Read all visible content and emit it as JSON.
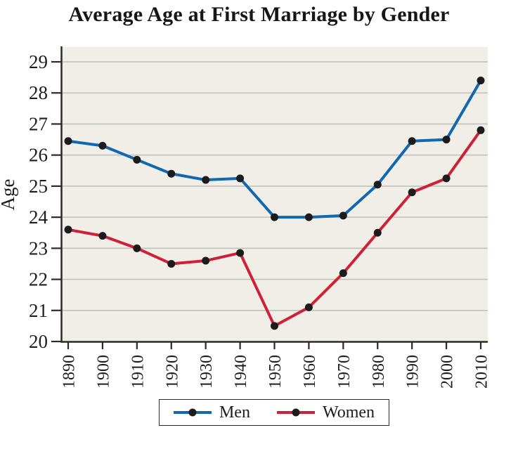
{
  "chart_data": {
    "type": "line",
    "title": "Average Age at First Marriage by Gender",
    "xlabel": "",
    "ylabel": "Age",
    "x": [
      1890,
      1900,
      1910,
      1920,
      1930,
      1940,
      1950,
      1960,
      1970,
      1980,
      1990,
      2000,
      2010
    ],
    "x_tick_labels": [
      "1890",
      "1900",
      "1910",
      "1920",
      "1930",
      "1940",
      "1950",
      "1960",
      "1970",
      "1980",
      "1990",
      "2000",
      "2010"
    ],
    "yticks": [
      20,
      21,
      22,
      23,
      24,
      25,
      26,
      27,
      28,
      29
    ],
    "ylim": [
      20,
      29.5
    ],
    "grid": true,
    "legend_position": "bottom",
    "series": [
      {
        "name": "Men",
        "color": "#1267b1",
        "marker_color": "#1c1c1c",
        "values": [
          26.45,
          26.3,
          25.85,
          25.4,
          25.2,
          25.25,
          24.0,
          24.0,
          24.05,
          25.05,
          26.45,
          26.5,
          28.4
        ]
      },
      {
        "name": "Women",
        "color": "#ce2137",
        "marker_color": "#1c1c1c",
        "values": [
          23.6,
          23.4,
          23.0,
          22.5,
          22.6,
          22.85,
          20.5,
          21.1,
          22.2,
          23.5,
          24.8,
          25.25,
          26.8
        ]
      }
    ],
    "colors": {
      "plot_background": "#f0eee6",
      "gridline": "#c0c2be",
      "axis": "#2a2a2a",
      "text": "#1d1d1d",
      "page_background": "#ffffff"
    }
  }
}
